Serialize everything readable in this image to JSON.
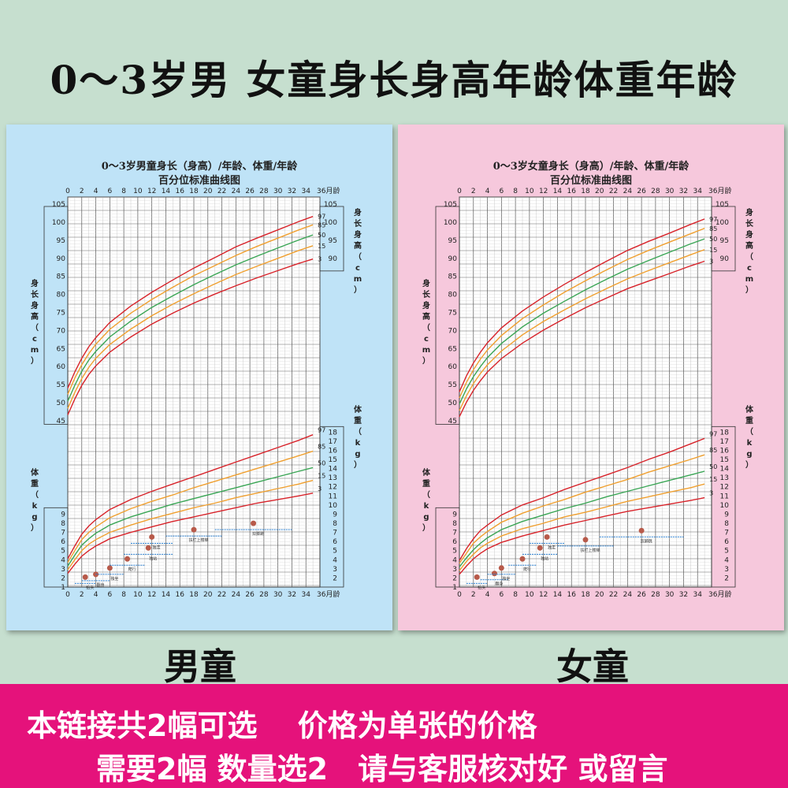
{
  "page_title": "0～3岁男 女童身长身高年龄体重年龄",
  "labels": {
    "boy": "男童",
    "girl": "女童"
  },
  "banner": {
    "line1": "本链接共2幅可选　  价格为单张的价格",
    "line2": "需要2幅 数量选2　请与客服核对好 或留言"
  },
  "colors": {
    "p97": "#d8232a",
    "p85": "#f0a030",
    "p50": "#3aa655",
    "p15": "#f0a030",
    "p3": "#d8232a",
    "boy_bg": "#bfe3f7",
    "girl_bg": "#f6c8dc",
    "banner": "#e5127b"
  },
  "chart_data": [
    {
      "type": "line",
      "title": "0～3岁男童身长（身高）/年龄、体重/年龄",
      "subtitle": "百分位标准曲线图",
      "xlabel": "月龄",
      "x_ticks": [
        0,
        2,
        4,
        6,
        8,
        10,
        12,
        14,
        16,
        18,
        20,
        22,
        24,
        26,
        28,
        30,
        32,
        34,
        36
      ],
      "x_tick_labels": [
        "0",
        "2",
        "4",
        "6",
        "8",
        "10",
        "12",
        "14",
        "16",
        "18",
        "20",
        "22",
        "24",
        "26",
        "28",
        "30",
        "32",
        "34",
        "36月龄"
      ],
      "xlim": [
        0,
        36
      ],
      "height_axis": {
        "label": "身长身高（cm）",
        "left_label": "身长身高（cm）",
        "right_label": "身长身高（cm）",
        "ylim": [
          43,
          107
        ],
        "ticks": [
          45,
          50,
          55,
          60,
          65,
          70,
          75,
          80,
          85,
          90,
          95,
          100,
          105
        ],
        "right_ticks": [
          90,
          95,
          100,
          105
        ]
      },
      "weight_axis": {
        "label": "体重（kg）",
        "left_label": "体重（kg）",
        "right_label": "体重（kg）",
        "ylim": [
          1,
          18.8
        ],
        "ticks": [
          1,
          2,
          3,
          4,
          5,
          6,
          7,
          8,
          9
        ],
        "right_ticks": [
          2,
          3,
          4,
          5,
          6,
          7,
          8,
          9,
          10,
          11,
          12,
          13,
          14,
          15,
          16,
          17,
          18
        ]
      },
      "x": [
        0,
        1,
        2,
        3,
        4,
        6,
        9,
        12,
        15,
        18,
        21,
        24,
        27,
        30,
        33,
        35
      ],
      "height_series": [
        {
          "name": "97",
          "values": [
            54.0,
            58.5,
            62.3,
            65.5,
            68.0,
            72.2,
            76.8,
            80.6,
            84.0,
            87.3,
            90.2,
            93.2,
            95.6,
            97.9,
            100.2,
            101.6
          ]
        },
        {
          "name": "85",
          "values": [
            52.3,
            56.8,
            60.5,
            63.6,
            66.2,
            70.3,
            74.8,
            78.6,
            82.0,
            85.2,
            88.0,
            90.8,
            93.3,
            95.6,
            97.9,
            99.3
          ]
        },
        {
          "name": "50",
          "values": [
            50.4,
            54.8,
            58.7,
            61.8,
            64.2,
            68.2,
            72.6,
            76.4,
            79.6,
            82.7,
            85.5,
            88.2,
            90.6,
            92.9,
            95.1,
            96.5
          ]
        },
        {
          "name": "15",
          "values": [
            48.4,
            52.8,
            56.7,
            59.8,
            62.3,
            66.1,
            70.4,
            74.1,
            77.3,
            80.2,
            82.9,
            85.5,
            87.8,
            90.0,
            92.2,
            93.5
          ]
        },
        {
          "name": "3",
          "values": [
            46.6,
            51.0,
            54.8,
            57.8,
            60.2,
            64.0,
            68.2,
            71.8,
            74.8,
            77.6,
            80.1,
            82.4,
            84.6,
            86.6,
            88.6,
            89.8
          ]
        }
      ],
      "weight_series": [
        {
          "name": "97",
          "values": [
            4.1,
            5.5,
            6.8,
            7.7,
            8.4,
            9.5,
            10.6,
            11.5,
            12.3,
            13.1,
            13.9,
            14.7,
            15.5,
            16.3,
            17.1,
            17.7
          ]
        },
        {
          "name": "85",
          "values": [
            3.7,
            5.0,
            6.2,
            7.0,
            7.6,
            8.6,
            9.6,
            10.4,
            11.1,
            11.9,
            12.6,
            13.3,
            14.0,
            14.7,
            15.4,
            15.9
          ]
        },
        {
          "name": "50",
          "values": [
            3.3,
            4.5,
            5.6,
            6.3,
            6.9,
            7.8,
            8.7,
            9.4,
            10.1,
            10.7,
            11.3,
            11.9,
            12.5,
            13.1,
            13.7,
            14.1
          ]
        },
        {
          "name": "15",
          "values": [
            2.9,
            4.0,
            5.0,
            5.7,
            6.2,
            7.0,
            7.8,
            8.5,
            9.1,
            9.7,
            10.2,
            10.8,
            11.3,
            11.8,
            12.3,
            12.7
          ]
        },
        {
          "name": "3",
          "values": [
            2.5,
            3.5,
            4.4,
            5.0,
            5.5,
            6.3,
            7.0,
            7.6,
            8.2,
            8.7,
            9.2,
            9.7,
            10.2,
            10.6,
            11.0,
            11.3
          ]
        }
      ],
      "milestones": [
        {
          "label": "抬头",
          "from": 1,
          "to": 4,
          "weight": 1.4
        },
        {
          "label": "翻身",
          "from": 2,
          "to": 6,
          "weight": 1.7
        },
        {
          "label": "独坐",
          "from": 4,
          "to": 8,
          "weight": 2.4
        },
        {
          "label": "爬行",
          "from": 6,
          "to": 11,
          "weight": 3.4
        },
        {
          "label": "独站",
          "from": 8,
          "to": 15,
          "weight": 4.6
        },
        {
          "label": "独走",
          "from": 9,
          "to": 15,
          "weight": 5.8
        },
        {
          "label": "扶栏上楼梯",
          "from": 14,
          "to": 22,
          "weight": 6.6
        },
        {
          "label": "双脚跳",
          "from": 21,
          "to": 32,
          "weight": 7.3
        }
      ]
    },
    {
      "type": "line",
      "title": "0～3岁女童身长（身高）/年龄、体重/年龄",
      "subtitle": "百分位标准曲线图",
      "xlabel": "月龄",
      "x_ticks": [
        0,
        2,
        4,
        6,
        8,
        10,
        12,
        14,
        16,
        18,
        20,
        22,
        24,
        26,
        28,
        30,
        32,
        34,
        36
      ],
      "x_tick_labels": [
        "0",
        "2",
        "4",
        "6",
        "8",
        "10",
        "12",
        "14",
        "16",
        "18",
        "20",
        "22",
        "24",
        "26",
        "28",
        "30",
        "32",
        "34",
        "36月龄"
      ],
      "xlim": [
        0,
        36
      ],
      "height_axis": {
        "label": "身长身高（cm）",
        "left_label": "身长身高（cm）",
        "right_label": "身长身高（cm）",
        "ylim": [
          43,
          107
        ],
        "ticks": [
          45,
          50,
          55,
          60,
          65,
          70,
          75,
          80,
          85,
          90,
          95,
          100,
          105
        ],
        "right_ticks": [
          90,
          95,
          100,
          105
        ]
      },
      "weight_axis": {
        "label": "体重（kg）",
        "left_label": "体重（kg）",
        "right_label": "体重（kg）",
        "ylim": [
          1,
          18.8
        ],
        "ticks": [
          1,
          2,
          3,
          4,
          5,
          6,
          7,
          8,
          9
        ],
        "right_ticks": [
          2,
          3,
          4,
          5,
          6,
          7,
          8,
          9,
          10,
          11,
          12,
          13,
          14,
          15,
          16,
          17,
          18
        ]
      },
      "x": [
        0,
        1,
        2,
        3,
        4,
        6,
        9,
        12,
        15,
        18,
        21,
        24,
        27,
        30,
        33,
        35
      ],
      "height_series": [
        {
          "name": "97",
          "values": [
            53.0,
            57.4,
            61.0,
            64.0,
            66.6,
            70.7,
            75.4,
            79.3,
            82.8,
            86.1,
            89.2,
            92.2,
            94.7,
            97.0,
            99.4,
            100.9
          ]
        },
        {
          "name": "85",
          "values": [
            51.3,
            55.6,
            59.1,
            62.1,
            64.6,
            68.6,
            73.3,
            77.1,
            80.6,
            83.8,
            86.8,
            89.7,
            92.2,
            94.5,
            96.8,
            98.3
          ]
        },
        {
          "name": "50",
          "values": [
            49.6,
            53.8,
            57.2,
            60.0,
            62.5,
            66.4,
            71.0,
            74.8,
            78.1,
            81.3,
            84.2,
            87.0,
            89.4,
            91.7,
            94.0,
            95.4
          ]
        },
        {
          "name": "15",
          "values": [
            47.8,
            51.9,
            55.3,
            58.1,
            60.5,
            64.3,
            68.8,
            72.5,
            75.7,
            78.8,
            81.6,
            84.3,
            86.6,
            88.8,
            91.0,
            92.4
          ]
        },
        {
          "name": "3",
          "values": [
            46.1,
            50.1,
            53.4,
            56.1,
            58.5,
            62.2,
            66.5,
            70.1,
            73.3,
            76.3,
            79.0,
            81.6,
            83.7,
            85.8,
            87.9,
            89.2
          ]
        }
      ],
      "weight_series": [
        {
          "name": "97",
          "values": [
            3.9,
            5.2,
            6.3,
            7.2,
            7.8,
            8.9,
            10.0,
            10.8,
            11.7,
            12.5,
            13.3,
            14.1,
            15.0,
            15.8,
            16.7,
            17.3
          ]
        },
        {
          "name": "85",
          "values": [
            3.6,
            4.7,
            5.8,
            6.5,
            7.1,
            8.1,
            9.1,
            9.9,
            10.6,
            11.4,
            12.1,
            12.8,
            13.6,
            14.3,
            15.0,
            15.5
          ]
        },
        {
          "name": "50",
          "values": [
            3.2,
            4.2,
            5.1,
            5.8,
            6.4,
            7.3,
            8.2,
            8.9,
            9.6,
            10.2,
            10.9,
            11.5,
            12.1,
            12.7,
            13.3,
            13.7
          ]
        },
        {
          "name": "15",
          "values": [
            2.8,
            3.8,
            4.6,
            5.3,
            5.8,
            6.6,
            7.4,
            8.0,
            8.7,
            9.2,
            9.8,
            10.4,
            10.9,
            11.4,
            11.9,
            12.3
          ]
        },
        {
          "name": "3",
          "values": [
            2.4,
            3.3,
            4.1,
            4.7,
            5.2,
            5.9,
            6.6,
            7.2,
            7.8,
            8.3,
            8.8,
            9.3,
            9.7,
            10.1,
            10.5,
            10.8
          ]
        }
      ],
      "milestones": [
        {
          "label": "抬头",
          "from": 1,
          "to": 4,
          "weight": 1.4
        },
        {
          "label": "翻身",
          "from": 3,
          "to": 7,
          "weight": 1.8
        },
        {
          "label": "独坐",
          "from": 4,
          "to": 8,
          "weight": 2.4
        },
        {
          "label": "爬行",
          "from": 7,
          "to": 11,
          "weight": 3.4
        },
        {
          "label": "独站",
          "from": 9,
          "to": 14,
          "weight": 4.6
        },
        {
          "label": "独走",
          "from": 10,
          "to": 15,
          "weight": 5.8
        },
        {
          "label": "扶栏上楼梯",
          "from": 14,
          "to": 22,
          "weight": 5.5
        },
        {
          "label": "双脚跳",
          "from": 20,
          "to": 32,
          "weight": 6.5
        }
      ]
    }
  ]
}
